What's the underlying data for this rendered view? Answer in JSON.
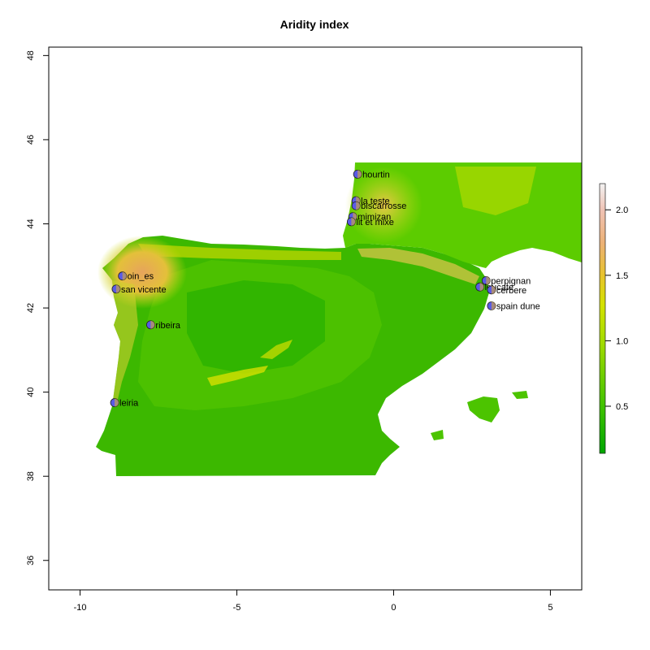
{
  "title": "Aridity index",
  "x_ticks": [
    -10,
    -5,
    0,
    5
  ],
  "y_ticks": [
    36,
    38,
    40,
    42,
    44,
    46,
    48
  ],
  "x_range": [
    -11,
    6
  ],
  "y_range": [
    35.3,
    48.2
  ],
  "legend": {
    "ticks": [
      "0.5",
      "1.0",
      "1.5",
      "2.0"
    ],
    "tick_values": [
      0.5,
      1.0,
      1.5,
      2.0
    ],
    "range": [
      0.14,
      2.2
    ],
    "colors": [
      "#00a600",
      "#3fc200",
      "#8fd800",
      "#d4e200",
      "#e8c32e",
      "#ecb176",
      "#efc2b3",
      "#f2f2f2"
    ]
  },
  "sites": [
    {
      "name": "hourtin",
      "lon": -1.15,
      "lat": 45.18
    },
    {
      "name": "la teste",
      "lon": -1.2,
      "lat": 44.55
    },
    {
      "name": "biscarrosse",
      "lon": -1.2,
      "lat": 44.43
    },
    {
      "name": "mimizan",
      "lon": -1.3,
      "lat": 44.17
    },
    {
      "name": "lit et mixe",
      "lon": -1.35,
      "lat": 44.05
    },
    {
      "name": "oin_es",
      "lon": -8.65,
      "lat": 42.76
    },
    {
      "name": "san vicente",
      "lon": -8.85,
      "lat": 42.45
    },
    {
      "name": "ribeira",
      "lon": -7.75,
      "lat": 41.6
    },
    {
      "name": "leiria",
      "lon": -8.9,
      "lat": 39.75
    },
    {
      "name": "perpignan",
      "lon": 2.95,
      "lat": 42.65
    },
    {
      "name": "leucate",
      "lon": 2.75,
      "lat": 42.5
    },
    {
      "name": "cerbere",
      "lon": 3.12,
      "lat": 42.43
    },
    {
      "name": "spain dune",
      "lon": 3.12,
      "lat": 42.05
    }
  ],
  "colors": {
    "point_fill": "#5a5ae6",
    "point_alt": "#c8a050"
  }
}
